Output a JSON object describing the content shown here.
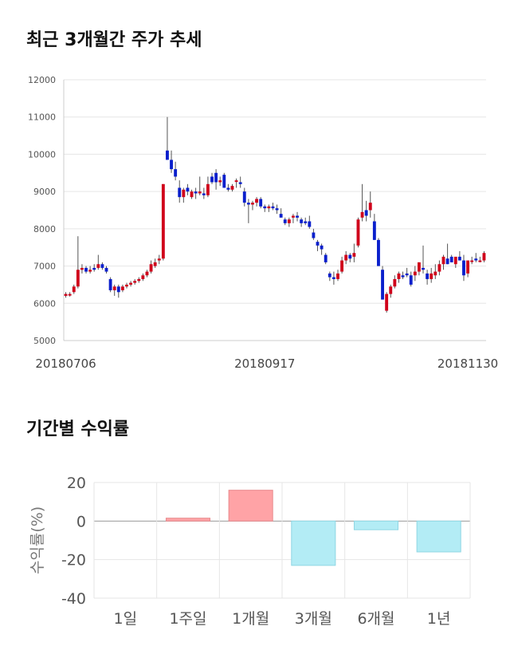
{
  "titles": {
    "price_chart": "최근 3개월간 주가 추세",
    "returns_chart": "기간별 수익률"
  },
  "colors": {
    "up": "#d0021b",
    "down": "#0a1fcc",
    "bar_positive": "#ffa3a6",
    "bar_negative": "#b3ecf5",
    "grid": "#e6e6e6"
  },
  "chart_data": [
    {
      "type": "candlestick",
      "title": "최근 3개월간 주가 추세",
      "ylim": [
        5000,
        12000
      ],
      "y_ticks": [
        "12000",
        "11000",
        "10000",
        "9000",
        "8000",
        "7000",
        "6000",
        "5000"
      ],
      "x_tick_labels": [
        {
          "index": 0,
          "label": "20180706"
        },
        {
          "index": 49,
          "label": "20180917"
        },
        {
          "index": 99,
          "label": "20181130"
        }
      ],
      "grid": true,
      "candles": [
        [
          6200,
          6300,
          6150,
          6250
        ],
        [
          6250,
          6300,
          6180,
          6250
        ],
        [
          6300,
          6500,
          6250,
          6450
        ],
        [
          6450,
          7800,
          6400,
          6900
        ],
        [
          6900,
          7050,
          6800,
          6950
        ],
        [
          6950,
          7000,
          6800,
          6850
        ],
        [
          6850,
          7000,
          6800,
          6900
        ],
        [
          6950,
          7050,
          6850,
          6900
        ],
        [
          6950,
          7300,
          6900,
          7050
        ],
        [
          7050,
          7100,
          6900,
          6950
        ],
        [
          6950,
          7000,
          6800,
          6850
        ],
        [
          6650,
          6700,
          6300,
          6350
        ],
        [
          6350,
          6500,
          6200,
          6450
        ],
        [
          6450,
          6500,
          6150,
          6300
        ],
        [
          6350,
          6500,
          6300,
          6450
        ],
        [
          6450,
          6550,
          6400,
          6500
        ],
        [
          6500,
          6600,
          6450,
          6550
        ],
        [
          6550,
          6650,
          6500,
          6600
        ],
        [
          6600,
          6700,
          6550,
          6650
        ],
        [
          6650,
          6800,
          6600,
          6750
        ],
        [
          6750,
          6900,
          6700,
          6850
        ],
        [
          6850,
          7150,
          6800,
          7050
        ],
        [
          7000,
          7200,
          6950,
          7100
        ],
        [
          7150,
          7300,
          7050,
          7200
        ],
        [
          7200,
          9200,
          7150,
          9200
        ],
        [
          10100,
          11000,
          9900,
          9850
        ],
        [
          9850,
          10100,
          9500,
          9600
        ],
        [
          9600,
          9800,
          9300,
          9400
        ],
        [
          9100,
          9300,
          8700,
          8850
        ],
        [
          8850,
          9100,
          8700,
          9050
        ],
        [
          9100,
          9200,
          8900,
          9000
        ],
        [
          8850,
          9050,
          8800,
          9000
        ],
        [
          9000,
          9100,
          8800,
          8950
        ],
        [
          8950,
          9400,
          8900,
          9000
        ],
        [
          8950,
          9100,
          8800,
          8900
        ],
        [
          8900,
          9400,
          8850,
          9200
        ],
        [
          9400,
          9500,
          9200,
          9250
        ],
        [
          9500,
          9600,
          9050,
          9250
        ],
        [
          9250,
          9400,
          9150,
          9300
        ],
        [
          9450,
          9500,
          9100,
          9100
        ],
        [
          9100,
          9200,
          9000,
          9050
        ],
        [
          9050,
          9200,
          9000,
          9150
        ],
        [
          9300,
          9350,
          9100,
          9300
        ],
        [
          9250,
          9400,
          9100,
          9200
        ],
        [
          9000,
          9100,
          8600,
          8700
        ],
        [
          8700,
          8800,
          8150,
          8650
        ],
        [
          8650,
          8750,
          8500,
          8700
        ],
        [
          8700,
          8850,
          8600,
          8800
        ],
        [
          8800,
          8850,
          8550,
          8600
        ],
        [
          8600,
          8650,
          8450,
          8550
        ],
        [
          8550,
          8650,
          8450,
          8600
        ],
        [
          8600,
          8700,
          8500,
          8550
        ],
        [
          8550,
          8650,
          8400,
          8500
        ],
        [
          8400,
          8550,
          8300,
          8300
        ],
        [
          8250,
          8300,
          8100,
          8150
        ],
        [
          8150,
          8300,
          8050,
          8250
        ],
        [
          8300,
          8400,
          8150,
          8350
        ],
        [
          8350,
          8450,
          8200,
          8300
        ],
        [
          8250,
          8300,
          8050,
          8150
        ],
        [
          8200,
          8300,
          8100,
          8150
        ],
        [
          8200,
          8350,
          8000,
          8050
        ],
        [
          7900,
          8000,
          7700,
          7750
        ],
        [
          7650,
          7700,
          7400,
          7550
        ],
        [
          7550,
          7600,
          7300,
          7450
        ],
        [
          7300,
          7350,
          7050,
          7100
        ],
        [
          6800,
          6850,
          6600,
          6700
        ],
        [
          6700,
          6850,
          6500,
          6650
        ],
        [
          6650,
          6900,
          6600,
          6800
        ],
        [
          6850,
          7250,
          6800,
          7150
        ],
        [
          7150,
          7400,
          7050,
          7300
        ],
        [
          7300,
          7350,
          7100,
          7200
        ],
        [
          7250,
          7600,
          7100,
          7350
        ],
        [
          7550,
          8300,
          7500,
          8250
        ],
        [
          8300,
          9200,
          8200,
          8450
        ],
        [
          8500,
          8750,
          8200,
          8350
        ],
        [
          8500,
          9000,
          8300,
          8700
        ],
        [
          8200,
          8400,
          7700,
          7700
        ],
        [
          7700,
          7750,
          7000,
          7000
        ],
        [
          6900,
          7000,
          6100,
          6100
        ],
        [
          5800,
          6300,
          5750,
          6250
        ],
        [
          6250,
          6500,
          6150,
          6450
        ],
        [
          6450,
          6750,
          6400,
          6650
        ],
        [
          6650,
          6850,
          6550,
          6800
        ],
        [
          6750,
          6850,
          6650,
          6700
        ],
        [
          6800,
          6950,
          6700,
          6750
        ],
        [
          6750,
          6850,
          6450,
          6500
        ],
        [
          6750,
          7000,
          6600,
          6850
        ],
        [
          6850,
          7100,
          6750,
          7100
        ],
        [
          6950,
          7550,
          6800,
          6900
        ],
        [
          6800,
          6900,
          6500,
          6650
        ],
        [
          6650,
          6950,
          6550,
          6800
        ],
        [
          6750,
          7050,
          6650,
          6850
        ],
        [
          6850,
          7150,
          6750,
          7050
        ],
        [
          7050,
          7300,
          6900,
          7250
        ],
        [
          7200,
          7600,
          7050,
          7050
        ],
        [
          7250,
          7300,
          7100,
          7100
        ],
        [
          7050,
          7200,
          6950,
          7250
        ],
        [
          7250,
          7400,
          7150,
          7150
        ],
        [
          7150,
          7300,
          6600,
          6750
        ],
        [
          6800,
          7100,
          6700,
          7150
        ],
        [
          7150,
          7250,
          7050,
          7150
        ],
        [
          7200,
          7350,
          7100,
          7150
        ],
        [
          7150,
          7250,
          7100,
          7150
        ],
        [
          7150,
          7400,
          7100,
          7350
        ]
      ]
    },
    {
      "type": "bar",
      "categories": [
        "1일",
        "1주일",
        "1개월",
        "3개월",
        "6개월",
        "1년"
      ],
      "values": [
        0.0,
        1.5,
        16.0,
        -23.0,
        -4.5,
        -16.0
      ],
      "ylabel": "수익률(%)",
      "ylim": [
        -40,
        20
      ],
      "y_ticks": [
        "20",
        "0",
        "-20",
        "-40"
      ],
      "grid": true
    }
  ]
}
